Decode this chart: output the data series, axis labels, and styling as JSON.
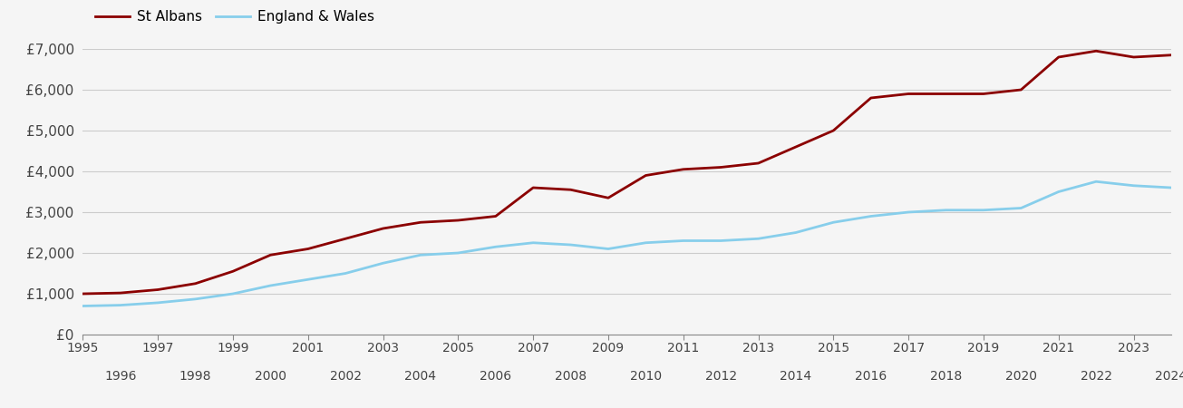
{
  "years": [
    1995,
    1996,
    1997,
    1998,
    1999,
    2000,
    2001,
    2002,
    2003,
    2004,
    2005,
    2006,
    2007,
    2008,
    2009,
    2010,
    2011,
    2012,
    2013,
    2014,
    2015,
    2016,
    2017,
    2018,
    2019,
    2020,
    2021,
    2022,
    2023,
    2024
  ],
  "st_albans": [
    1000,
    1020,
    1100,
    1250,
    1550,
    1950,
    2100,
    2350,
    2600,
    2750,
    2800,
    2900,
    3600,
    3550,
    3350,
    3900,
    4050,
    4100,
    4200,
    4600,
    5000,
    5800,
    5900,
    5900,
    5900,
    6000,
    6800,
    6950,
    6800,
    6850
  ],
  "england_wales": [
    700,
    720,
    780,
    870,
    1000,
    1200,
    1350,
    1500,
    1750,
    1950,
    2000,
    2150,
    2250,
    2200,
    2100,
    2250,
    2300,
    2300,
    2350,
    2500,
    2750,
    2900,
    3000,
    3050,
    3050,
    3100,
    3500,
    3750,
    3650,
    3600
  ],
  "st_albans_color": "#8B0000",
  "england_wales_color": "#87CEEB",
  "background_color": "#f5f5f5",
  "grid_color": "#cccccc",
  "ylim": [
    0,
    7000
  ],
  "yticks": [
    0,
    1000,
    2000,
    3000,
    4000,
    5000,
    6000,
    7000
  ],
  "ytick_labels": [
    "£0",
    "£1,000",
    "£2,000",
    "£3,000",
    "£4,000",
    "£5,000",
    "£6,000",
    "£7,000"
  ],
  "legend_labels": [
    "St Albans",
    "England & Wales"
  ],
  "line_width": 2.0,
  "xlim_left": 1995,
  "xlim_right": 2024
}
